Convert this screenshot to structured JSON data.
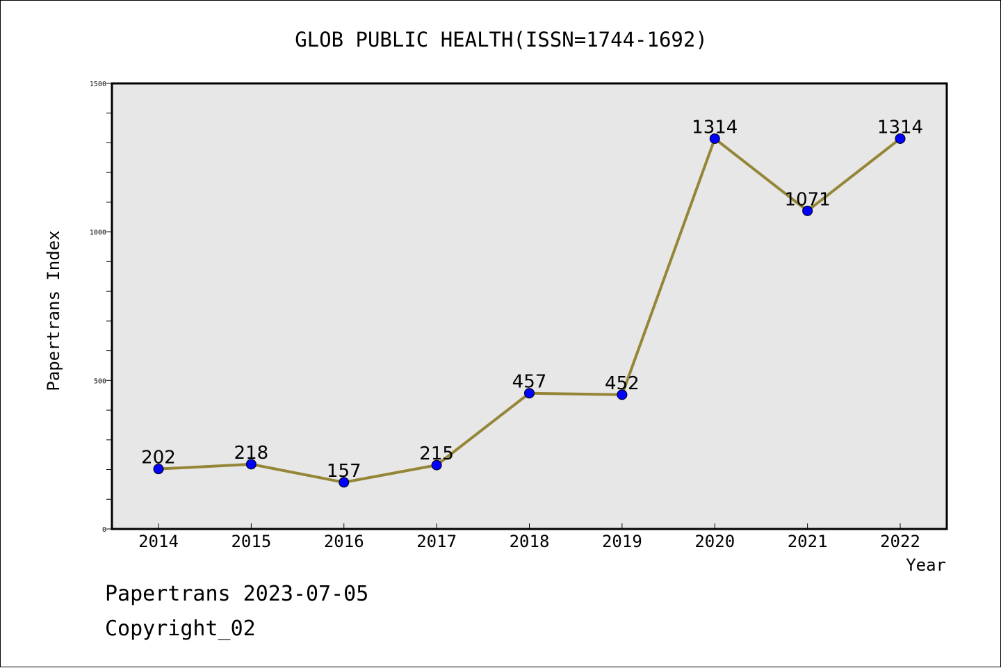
{
  "chart_data": {
    "type": "line",
    "title": "GLOB PUBLIC HEALTH(ISSN=1744-1692)",
    "xlabel": "Year",
    "ylabel": "Papertrans Index",
    "categories": [
      "2014",
      "2015",
      "2016",
      "2017",
      "2018",
      "2019",
      "2020",
      "2021",
      "2022"
    ],
    "values": [
      202,
      218,
      157,
      215,
      457,
      452,
      1314,
      1071,
      1314
    ],
    "data_labels": [
      "202",
      "218",
      "157",
      "215",
      "457",
      "452",
      "1314",
      "1071",
      "1314"
    ],
    "ylim": [
      0,
      1500
    ],
    "y_tick_labels": [
      "0",
      "500",
      "1000",
      "1500"
    ],
    "y_ticks": [
      0,
      500,
      1000,
      1500
    ],
    "y_minor_step": 100,
    "grid": false,
    "line_color": "#958637",
    "marker_color": "#0000ff",
    "plot_background": "#e7e7e7"
  },
  "footer": {
    "date_line": "Papertrans 2023-07-05",
    "copyright_line": "Copyright_02"
  }
}
